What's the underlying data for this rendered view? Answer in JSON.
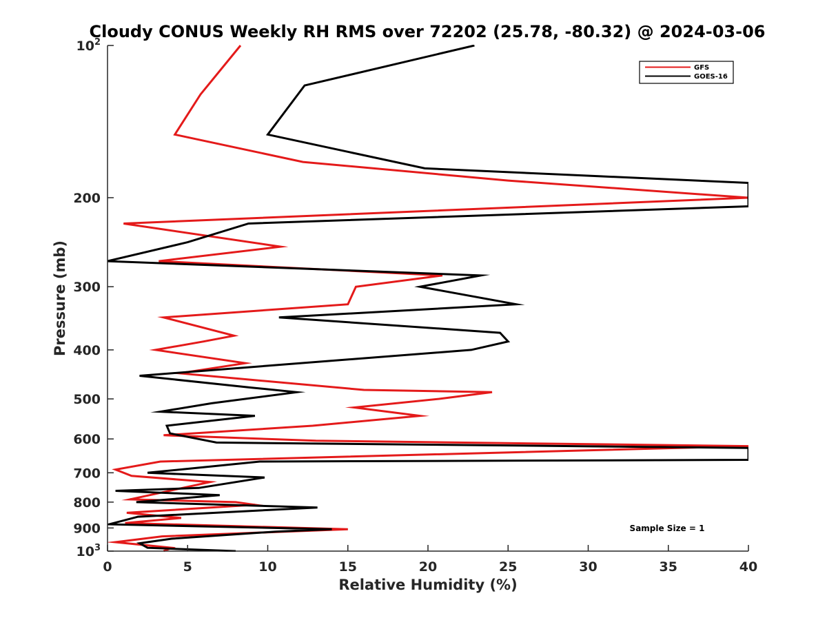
{
  "chart_data": {
    "type": "line",
    "title": "Cloudy CONUS Weekly RH RMS over 72202 (25.78, -80.32) @ 2024-03-06",
    "xlabel": "Relative Humidity (%)",
    "ylabel": "Pressure (mb)",
    "xlim": [
      0,
      40
    ],
    "ylim": [
      100,
      1000
    ],
    "y_scale": "log",
    "y_reversed": true,
    "grid": false,
    "legend_position": "top-right",
    "x_ticks": [
      "0",
      "5",
      "10",
      "15",
      "20",
      "25",
      "30",
      "35",
      "40"
    ],
    "y_ticks": [
      {
        "value": 100,
        "base": "10",
        "exp": "2"
      },
      {
        "value": 200,
        "label": "200"
      },
      {
        "value": 300,
        "label": "300"
      },
      {
        "value": 400,
        "label": "400"
      },
      {
        "value": 500,
        "label": "500"
      },
      {
        "value": 600,
        "label": "600"
      },
      {
        "value": 700,
        "label": "700"
      },
      {
        "value": 800,
        "label": "800"
      },
      {
        "value": 900,
        "label": "900"
      },
      {
        "value": 1000,
        "base": "10",
        "exp": "3"
      }
    ],
    "annotation": "Sample Size = 1",
    "series": [
      {
        "name": "GFS",
        "color": "#e41a1a",
        "points": [
          [
            8.3,
            100
          ],
          [
            5.8,
            125
          ],
          [
            4.2,
            150
          ],
          [
            12.2,
            170
          ],
          [
            25.0,
            185
          ],
          [
            40.0,
            200
          ],
          [
            1.0,
            225
          ],
          [
            10.8,
            250
          ],
          [
            3.2,
            267
          ],
          [
            20.9,
            285
          ],
          [
            15.5,
            300
          ],
          [
            15.0,
            325
          ],
          [
            3.5,
            345
          ],
          [
            7.9,
            375
          ],
          [
            6.0,
            385
          ],
          [
            3.0,
            400
          ],
          [
            8.6,
            425
          ],
          [
            4.5,
            445
          ],
          [
            16.0,
            480
          ],
          [
            24.0,
            485
          ],
          [
            20.7,
            500
          ],
          [
            15.4,
            520
          ],
          [
            19.5,
            540
          ],
          [
            12.8,
            565
          ],
          [
            3.5,
            590
          ],
          [
            13.0,
            605
          ],
          [
            40.0,
            620
          ],
          [
            3.3,
            665
          ],
          [
            0.5,
            690
          ],
          [
            1.5,
            710
          ],
          [
            6.4,
            730
          ],
          [
            1.4,
            790
          ],
          [
            8.0,
            800
          ],
          [
            9.2,
            810
          ],
          [
            1.2,
            840
          ],
          [
            4.6,
            860
          ],
          [
            1.1,
            880
          ],
          [
            15.0,
            905
          ],
          [
            3.4,
            935
          ],
          [
            0.5,
            960
          ],
          [
            4.0,
            985
          ],
          [
            3.5,
            1000
          ]
        ]
      },
      {
        "name": "GOES-16",
        "color": "#000000",
        "points": [
          [
            22.9,
            100
          ],
          [
            12.3,
            120
          ],
          [
            10.0,
            150
          ],
          [
            19.8,
            175
          ],
          [
            40.0,
            187
          ],
          [
            40.0,
            208
          ],
          [
            8.8,
            225
          ],
          [
            5.0,
            245
          ],
          [
            0.0,
            267
          ],
          [
            23.3,
            285
          ],
          [
            19.5,
            300
          ],
          [
            25.5,
            325
          ],
          [
            10.7,
            345
          ],
          [
            24.5,
            370
          ],
          [
            25.0,
            385
          ],
          [
            22.7,
            400
          ],
          [
            2.0,
            450
          ],
          [
            9.0,
            475
          ],
          [
            11.8,
            485
          ],
          [
            6.5,
            510
          ],
          [
            3.3,
            530
          ],
          [
            9.2,
            540
          ],
          [
            3.7,
            565
          ],
          [
            3.9,
            585
          ],
          [
            6.8,
            610
          ],
          [
            40.0,
            625
          ],
          [
            40.0,
            660
          ],
          [
            9.5,
            665
          ],
          [
            5.5,
            685
          ],
          [
            2.5,
            700
          ],
          [
            9.8,
            715
          ],
          [
            5.7,
            750
          ],
          [
            0.5,
            760
          ],
          [
            7.0,
            775
          ],
          [
            1.8,
            800
          ],
          [
            13.1,
            820
          ],
          [
            1.9,
            855
          ],
          [
            0.1,
            885
          ],
          [
            14.0,
            905
          ],
          [
            10.5,
            915
          ],
          [
            4.0,
            945
          ],
          [
            2.0,
            965
          ],
          [
            2.5,
            985
          ],
          [
            8.0,
            1000
          ]
        ]
      }
    ]
  }
}
